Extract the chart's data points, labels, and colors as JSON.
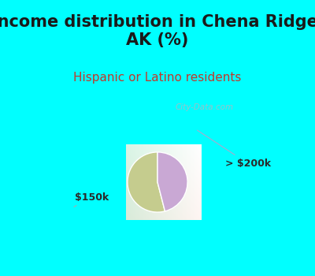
{
  "title": "Income distribution in Chena Ridge,\nAK (%)",
  "subtitle": "Hispanic or Latino residents",
  "slices": [
    {
      "label": "$150k",
      "value": 54,
      "color": "#c5cc8e"
    },
    {
      "label": "> $200k",
      "value": 46,
      "color": "#c9a8d4"
    }
  ],
  "title_color": "#1a1a1a",
  "subtitle_color": "#c0392b",
  "background_top": "#00ffff",
  "label_color": "#2a2a2a",
  "watermark": "City-Data.com",
  "startangle": 90,
  "title_fontsize": 15,
  "subtitle_fontsize": 11,
  "label_fontsize": 9
}
